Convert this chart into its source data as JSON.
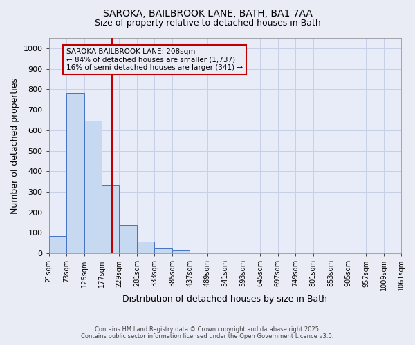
{
  "title_line1": "SAROKA, BAILBROOK LANE, BATH, BA1 7AA",
  "title_line2": "Size of property relative to detached houses in Bath",
  "xlabel": "Distribution of detached houses by size in Bath",
  "ylabel": "Number of detached properties",
  "bin_edges": [
    21,
    73,
    125,
    177,
    229,
    281,
    333,
    385,
    437,
    489,
    541,
    593,
    645,
    697,
    749,
    801,
    853,
    905,
    957,
    1009,
    1061
  ],
  "bar_heights": [
    85,
    780,
    648,
    335,
    137,
    57,
    25,
    15,
    5,
    1,
    0,
    0,
    0,
    0,
    0,
    0,
    0,
    0,
    0,
    0
  ],
  "bar_color": "#c6d9f0",
  "bar_edge_color": "#4472c4",
  "property_size": 208,
  "property_line_color": "#c00000",
  "annotation_text": "SAROKA BAILBROOK LANE: 208sqm\n← 84% of detached houses are smaller (1,737)\n16% of semi-detached houses are larger (341) →",
  "annotation_box_color": "#c00000",
  "ylim": [
    0,
    1050
  ],
  "yticks": [
    0,
    100,
    200,
    300,
    400,
    500,
    600,
    700,
    800,
    900,
    1000
  ],
  "background_color": "#eaecf5",
  "axes_background": "#e8ecf8",
  "grid_color": "#c8d0e8",
  "footer_line1": "Contains HM Land Registry data © Crown copyright and database right 2025.",
  "footer_line2": "Contains public sector information licensed under the Open Government Licence v3.0."
}
